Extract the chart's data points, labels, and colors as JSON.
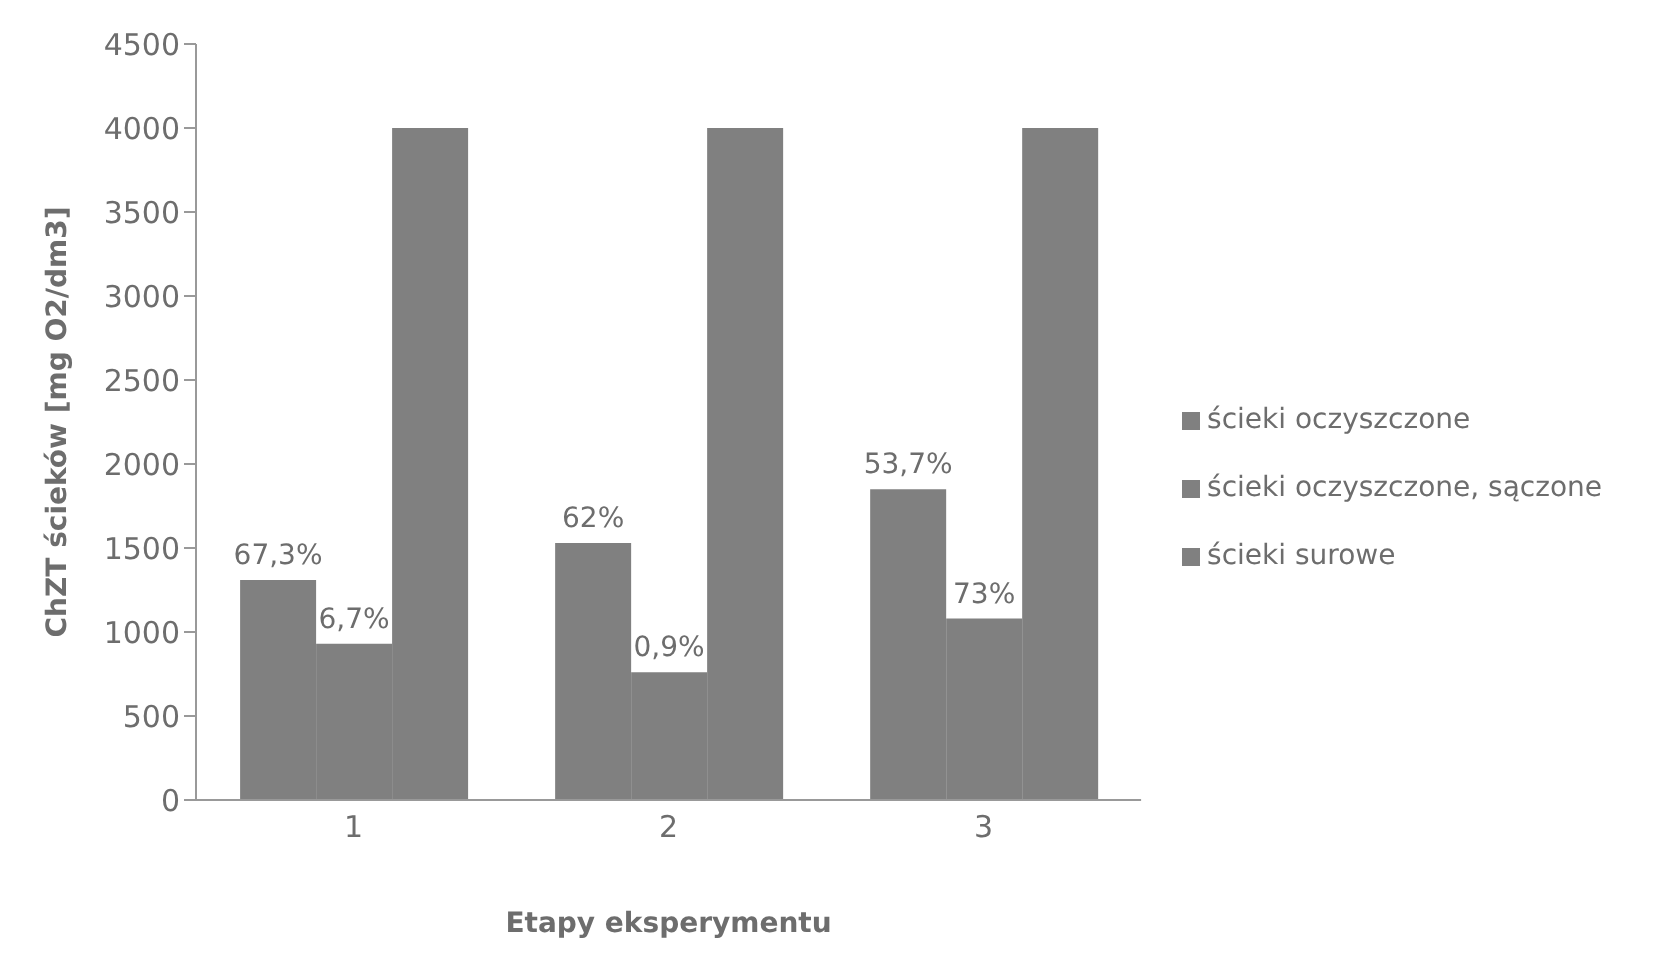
{
  "chart_data": {
    "type": "bar",
    "xlabel": "Etapy eksperymentu",
    "ylabel": "ChZT ścieków [mg O2/dm3]",
    "categories": [
      "1",
      "2",
      "3"
    ],
    "series": [
      {
        "name": "ścieki oczyszczone",
        "color": "#808080",
        "values": [
          1310,
          1530,
          1850
        ]
      },
      {
        "name": "ścieki oczyszczone, sączone",
        "color": "#808080",
        "values": [
          930,
          760,
          1080
        ]
      },
      {
        "name": "ścieki surowe",
        "color": "#808080",
        "values": [
          4000,
          4000,
          4000
        ]
      }
    ],
    "annotations": [
      "67,3%",
      "62%",
      "53,7%",
      {
        "text": "6,7%",
        "x": "1",
        "y": 930
      },
      {
        "text": "0,9%",
        "x": "2",
        "y": 760
      },
      {
        "text": "73%",
        "x": "3",
        "y": 1080
      }
    ],
    "ylim": [
      0,
      4500
    ],
    "yticks": [
      0,
      500,
      1000,
      1500,
      2000,
      2500,
      3000,
      3500,
      4000,
      4500
    ],
    "grid": false,
    "legend": "right"
  }
}
